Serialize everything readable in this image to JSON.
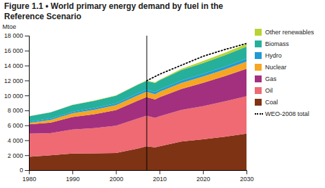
{
  "chart_data": {
    "type": "area",
    "stacked": true,
    "title": "Figure 1.1 • World primary energy demand by fuel in the Reference Scenario",
    "y_label": "Mtoe",
    "x": [
      1980,
      1985,
      1990,
      1995,
      2000,
      2005,
      2007,
      2009,
      2010,
      2015,
      2020,
      2025,
      2030
    ],
    "series": [
      {
        "name": "Coal",
        "color": "#7f3315",
        "values": [
          1790,
          2000,
          2221,
          2250,
          2292,
          2900,
          3184,
          3050,
          3200,
          3828,
          4125,
          4480,
          4887
        ]
      },
      {
        "name": "Oil",
        "color": "#ef6a72",
        "values": [
          3107,
          2950,
          3217,
          3380,
          3650,
          4000,
          4093,
          3950,
          4000,
          4234,
          4447,
          4720,
          5009
        ]
      },
      {
        "name": "Gas",
        "color": "#a3307f",
        "values": [
          1235,
          1400,
          1668,
          1850,
          2085,
          2400,
          2512,
          2450,
          2550,
          2801,
          3106,
          3380,
          3670
        ]
      },
      {
        "name": "Nuclear",
        "color": "#f6a623",
        "values": [
          186,
          380,
          526,
          610,
          675,
          720,
          709,
          720,
          740,
          810,
          851,
          900,
          956
        ]
      },
      {
        "name": "Hydro",
        "color": "#1f9ad6",
        "values": [
          148,
          170,
          184,
          210,
          225,
          255,
          265,
          270,
          280,
          317,
          348,
          375,
          402
        ]
      },
      {
        "name": "Biomass",
        "color": "#26b09c",
        "values": [
          749,
          830,
          904,
          970,
          1031,
          1150,
          1176,
          1220,
          1250,
          1388,
          1459,
          1530,
          1604
        ]
      },
      {
        "name": "Other renewables",
        "color": "#b7d433",
        "values": [
          12,
          20,
          36,
          45,
          55,
          65,
          74,
          85,
          90,
          160,
          256,
          310,
          370
        ]
      },
      {
        "name": "WEO-2008 total",
        "type": "line",
        "line_style": "dotted",
        "color": "#000000",
        "values": [
          null,
          null,
          null,
          null,
          null,
          null,
          12013,
          null,
          12900,
          14100,
          15300,
          16200,
          17014
        ]
      }
    ],
    "reference_lines": [
      {
        "axis": "x",
        "value": 2007
      }
    ],
    "xlim": [
      1980,
      2030
    ],
    "xticks": [
      1980,
      1990,
      2000,
      2010,
      2020,
      2030
    ],
    "ylim": [
      0,
      18000
    ],
    "yticks": [
      0,
      {
        "value": 2000,
        "label": "2 000"
      },
      {
        "value": 4000,
        "label": "4 000"
      },
      {
        "value": 6000,
        "label": "6 000"
      },
      {
        "value": 8000,
        "label": "8 000"
      },
      {
        "value": 10000,
        "label": "10 000"
      },
      {
        "value": 12000,
        "label": "12 000"
      },
      {
        "value": 14000,
        "label": "14 000"
      },
      {
        "value": 16000,
        "label": "16 000"
      },
      {
        "value": 18000,
        "label": "18 000"
      }
    ],
    "grid": false,
    "legend": "right"
  }
}
